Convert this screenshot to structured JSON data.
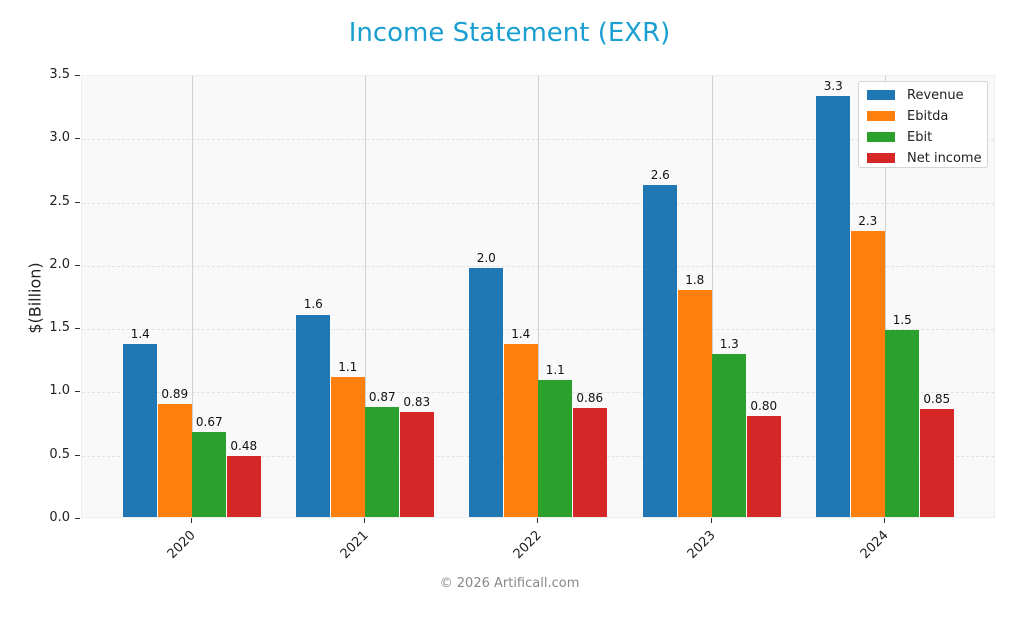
{
  "title": "Income Statement (EXR)",
  "footer": "© 2026 Artificall.com",
  "colors": {
    "revenue": "#1f77b4",
    "ebitda": "#ff7f0e",
    "ebit": "#2ca02c",
    "net_income": "#d62728",
    "title": "#1a9fd0"
  },
  "legend": [
    "Revenue",
    "Ebitda",
    "Ebit",
    "Net income"
  ],
  "y_ticks": [
    "0.0",
    "0.5",
    "1.0",
    "1.5",
    "2.0",
    "2.5",
    "3.0",
    "3.5"
  ],
  "x_ticks": [
    "2020",
    "2021",
    "2022",
    "2023",
    "2024"
  ],
  "ylabel": "$(Billion)",
  "chart_data": {
    "type": "bar",
    "title": "Income Statement (EXR)",
    "xlabel": "",
    "ylabel": "$(Billion)",
    "ylim": [
      0,
      3.5
    ],
    "grid": true,
    "legend_position": "upper right",
    "categories": [
      "2020",
      "2021",
      "2022",
      "2023",
      "2024"
    ],
    "series": [
      {
        "name": "Revenue",
        "color": "#1f77b4",
        "values": [
          1.37,
          1.6,
          1.97,
          2.62,
          3.33
        ],
        "labels": [
          "1.4",
          "1.6",
          "2.0",
          "2.6",
          "3.3"
        ]
      },
      {
        "name": "Ebitda",
        "color": "#ff7f0e",
        "values": [
          0.89,
          1.11,
          1.37,
          1.79,
          2.26
        ],
        "labels": [
          "0.89",
          "1.1",
          "1.4",
          "1.8",
          "2.3"
        ]
      },
      {
        "name": "Ebit",
        "color": "#2ca02c",
        "values": [
          0.67,
          0.87,
          1.08,
          1.29,
          1.48
        ],
        "labels": [
          "0.67",
          "0.87",
          "1.1",
          "1.3",
          "1.5"
        ]
      },
      {
        "name": "Net income",
        "color": "#d62728",
        "values": [
          0.48,
          0.83,
          0.86,
          0.8,
          0.85
        ],
        "labels": [
          "0.48",
          "0.83",
          "0.86",
          "0.80",
          "0.85"
        ]
      }
    ]
  }
}
